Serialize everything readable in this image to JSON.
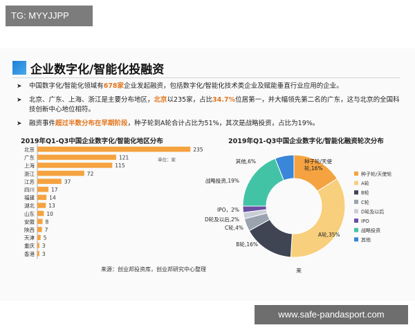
{
  "tag": "TG: MYYJJPP",
  "title": "企业数字化/智能化投融资",
  "bullets": [
    {
      "parts": [
        [
          "中国数字化/智能化领域有",
          false
        ],
        [
          "678家",
          true
        ],
        [
          "企业发起融资，包括数字化/智能化技术类企业及赋能垂直行业应用的企业。",
          false
        ]
      ]
    },
    {
      "parts": [
        [
          "北京、广东、上海、浙江是主要分布地区，",
          false
        ],
        [
          "北京",
          true
        ],
        [
          "以235家，占比",
          false
        ],
        [
          "34.7%",
          true
        ],
        [
          "位居第一，并大幅领先第二名的广东，这与北京的全国科技创新中心地位相符。",
          false
        ]
      ]
    },
    {
      "parts": [
        [
          "融资事件",
          false
        ],
        [
          "超过半数分布在早期阶段",
          true
        ],
        [
          "，种子轮到A轮合计占比为51%，其次是战略投资，占比为19%。",
          false
        ]
      ]
    }
  ],
  "bar_source": "来源：创业邦投资库，创业邦研究中心整理",
  "pie_source": "来",
  "watermark": "www.safe-pandasport.com",
  "colors": {
    "accent": "#1f7fd6",
    "bar": "#f5a340",
    "highlight": "#e3761e"
  },
  "chart_data": [
    {
      "type": "bar",
      "orientation": "horizontal",
      "title": "2019年Q1-Q3中国企业数字化/智能化地区分布",
      "unit_label": "单位：家",
      "categories": [
        "北京",
        "广东",
        "上海",
        "浙江",
        "江苏",
        "四川",
        "福建",
        "湖北",
        "山东",
        "安徽",
        "陕西",
        "天津",
        "重庆",
        "香港"
      ],
      "values": [
        235,
        121,
        115,
        72,
        37,
        17,
        14,
        13,
        10,
        8,
        7,
        5,
        3,
        3
      ],
      "xlim": [
        0,
        240
      ]
    },
    {
      "type": "pie",
      "donut": true,
      "title": "2019年Q1-Q3中国企业数字化/智能化融资轮次分布",
      "slices": [
        {
          "name": "种子轮/天使轮",
          "label": "种子轮/天使轮,16%",
          "value": 16,
          "color": "#f5a340"
        },
        {
          "name": "A轮",
          "label": "A轮,35%",
          "value": 35,
          "color": "#f8cf7c"
        },
        {
          "name": "B轮",
          "label": "B轮,16%",
          "value": 16,
          "color": "#3f4553"
        },
        {
          "name": "C轮",
          "label": "C轮,4%",
          "value": 4,
          "color": "#9aa3ae"
        },
        {
          "name": "D轮及以后",
          "label": "D轮及以后,2%",
          "value": 2,
          "color": "#c9ced5"
        },
        {
          "name": "IPO",
          "label": "IPO，2%",
          "value": 2,
          "color": "#6b4fa3"
        },
        {
          "name": "战略投资",
          "label": "战略投资,19%",
          "value": 19,
          "color": "#43c3a6"
        },
        {
          "name": "其他",
          "label": "其他,6%",
          "value": 6,
          "color": "#3a86d8"
        }
      ],
      "legend_position": "right"
    }
  ]
}
